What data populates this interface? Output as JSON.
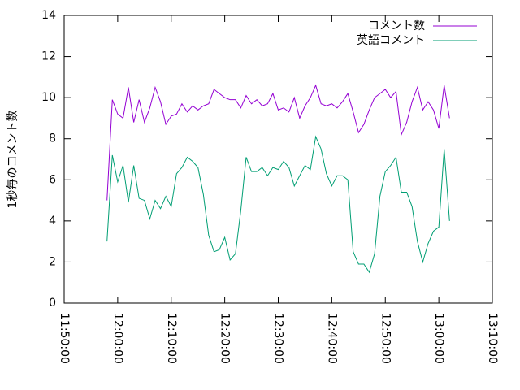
{
  "chart_data": {
    "type": "line",
    "y_label": "1秒毎のコメント数",
    "x": [
      "11:58:00",
      "11:59:00",
      "12:00:00",
      "12:01:00",
      "12:02:00",
      "12:03:00",
      "12:04:00",
      "12:05:00",
      "12:06:00",
      "12:07:00",
      "12:08:00",
      "12:09:00",
      "12:10:00",
      "12:11:00",
      "12:12:00",
      "12:13:00",
      "12:14:00",
      "12:15:00",
      "12:16:00",
      "12:17:00",
      "12:18:00",
      "12:19:00",
      "12:20:00",
      "12:21:00",
      "12:22:00",
      "12:23:00",
      "12:24:00",
      "12:25:00",
      "12:26:00",
      "12:27:00",
      "12:28:00",
      "12:29:00",
      "12:30:00",
      "12:31:00",
      "12:32:00",
      "12:33:00",
      "12:34:00",
      "12:35:00",
      "12:36:00",
      "12:37:00",
      "12:38:00",
      "12:39:00",
      "12:40:00",
      "12:41:00",
      "12:42:00",
      "12:43:00",
      "12:44:00",
      "12:45:00",
      "12:46:00",
      "12:47:00",
      "12:48:00",
      "12:49:00",
      "12:50:00",
      "12:51:00",
      "12:52:00",
      "12:53:00",
      "12:54:00",
      "12:55:00",
      "12:56:00",
      "12:57:00",
      "12:58:00",
      "12:59:00",
      "13:00:00",
      "13:01:00",
      "13:02:00"
    ],
    "series": [
      {
        "name": "コメント数",
        "color": "#9400d3",
        "values": [
          5.0,
          9.9,
          9.2,
          9.0,
          10.5,
          8.8,
          9.9,
          8.8,
          9.5,
          10.5,
          9.8,
          8.7,
          9.1,
          9.2,
          9.7,
          9.3,
          9.6,
          9.4,
          9.6,
          9.7,
          10.4,
          10.2,
          10.0,
          9.9,
          9.9,
          9.5,
          10.1,
          9.7,
          9.9,
          9.6,
          9.7,
          10.2,
          9.4,
          9.5,
          9.3,
          10.0,
          9.0,
          9.6,
          10.0,
          10.6,
          9.7,
          9.6,
          9.7,
          9.5,
          9.8,
          10.2,
          9.3,
          8.3,
          8.7,
          9.4,
          10.0,
          10.2,
          10.4,
          10.0,
          10.3,
          8.2,
          8.8,
          9.8,
          10.5,
          9.4,
          9.8,
          9.4,
          8.5,
          10.6,
          9.0
        ]
      },
      {
        "name": "英語コメント",
        "color": "#009e73",
        "values": [
          3.0,
          7.2,
          5.9,
          6.7,
          4.9,
          6.7,
          5.1,
          5.0,
          4.1,
          5.0,
          4.6,
          5.2,
          4.7,
          6.3,
          6.6,
          7.1,
          6.9,
          6.6,
          5.3,
          3.3,
          2.5,
          2.6,
          3.2,
          2.1,
          2.4,
          4.5,
          7.1,
          6.4,
          6.4,
          6.6,
          6.2,
          6.6,
          6.5,
          6.9,
          6.6,
          5.7,
          6.2,
          6.7,
          6.5,
          8.1,
          7.5,
          6.3,
          5.7,
          6.2,
          6.2,
          6.0,
          2.5,
          1.9,
          1.9,
          1.5,
          2.4,
          5.2,
          6.4,
          6.7,
          7.1,
          5.4,
          5.4,
          4.7,
          3.0,
          2.0,
          2.9,
          3.5,
          3.7,
          7.5,
          4.0
        ]
      }
    ],
    "xlim": [
      "11:50:00",
      "13:10:00"
    ],
    "xticks": [
      "11:50:00",
      "12:00:00",
      "12:10:00",
      "12:20:00",
      "12:30:00",
      "12:40:00",
      "12:50:00",
      "13:00:00",
      "13:10:00"
    ],
    "ylim": [
      0,
      14
    ],
    "yticks": [
      0,
      2,
      4,
      6,
      8,
      10,
      12,
      14
    ],
    "legend": "top-right"
  }
}
